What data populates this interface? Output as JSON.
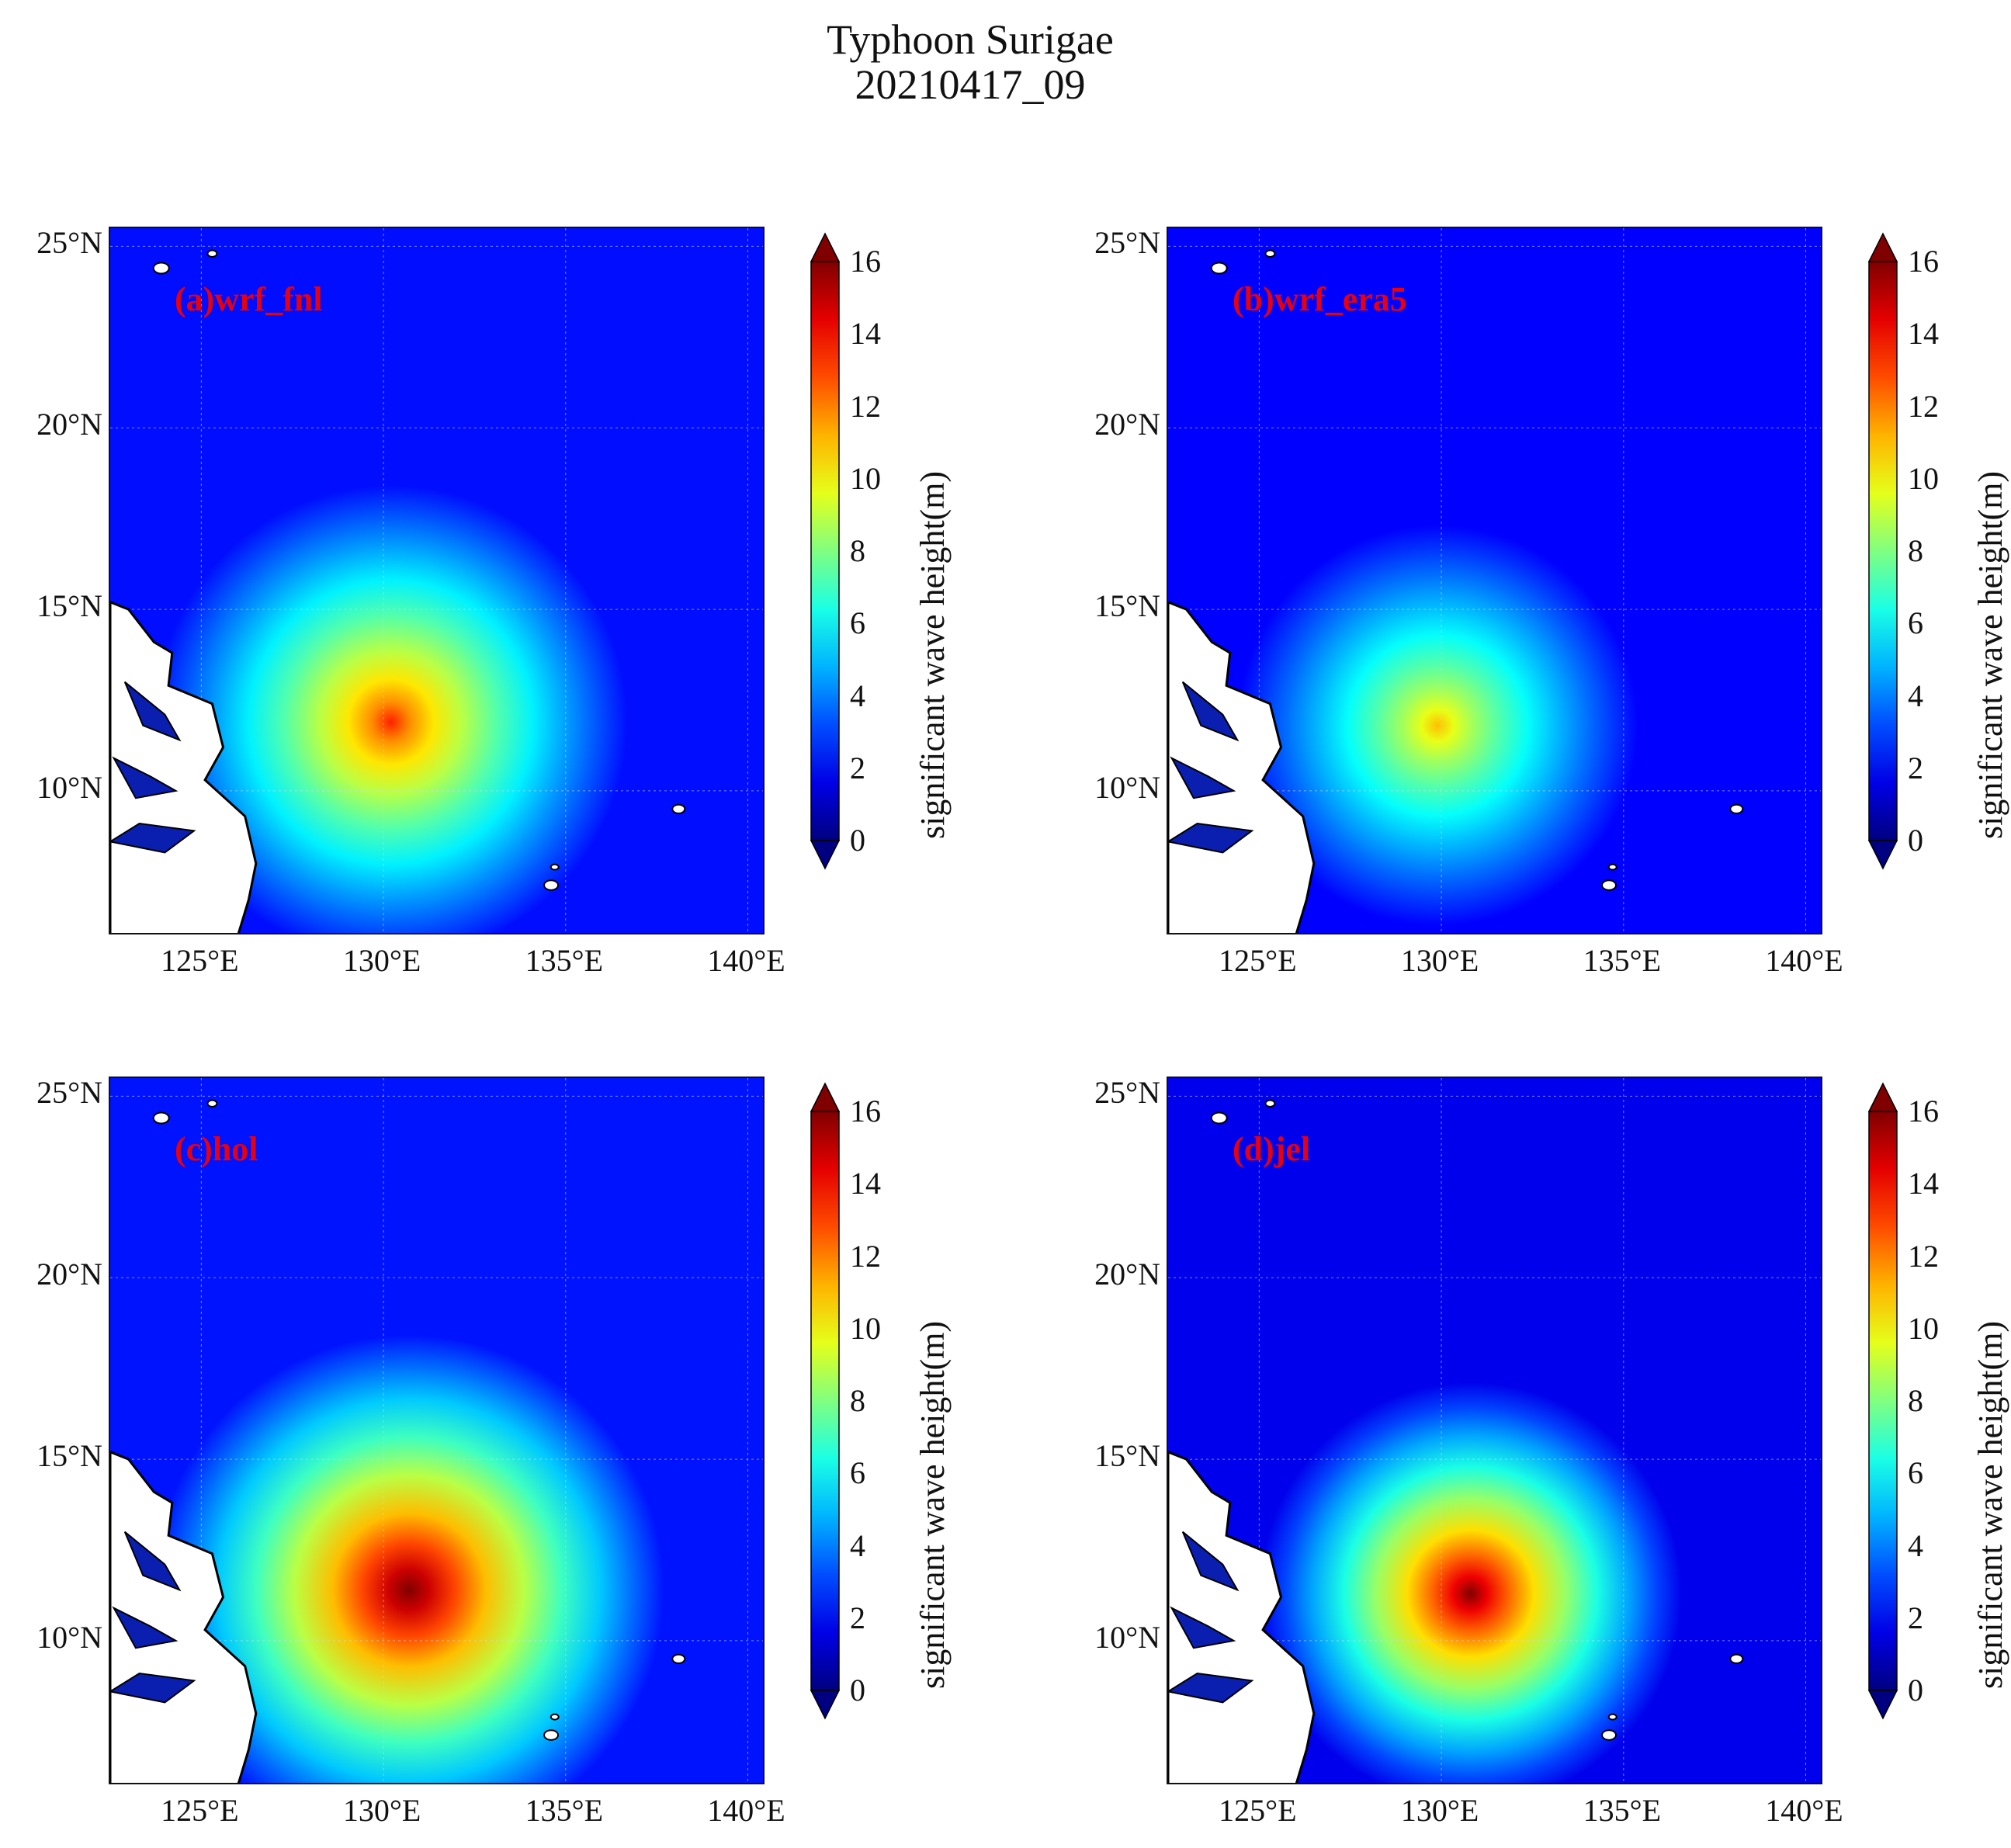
{
  "figure": {
    "title": "Typhoon Surigae",
    "subtitle": "20210417_09"
  },
  "chart_data": [
    {
      "type": "heatmap",
      "panel_label": "(a)wrf_fnl",
      "x_ticks": [
        "125°E",
        "130°E",
        "135°E",
        "140°E"
      ],
      "y_ticks": [
        "25°N",
        "20°N",
        "15°N",
        "10°N"
      ],
      "xlim": [
        122.5,
        140.5
      ],
      "ylim": [
        6.0,
        25.5
      ],
      "colorbar": {
        "label": "significant wave height(m)",
        "ticks": [
          "0",
          "2",
          "4",
          "6",
          "8",
          "10",
          "12",
          "14",
          "16"
        ],
        "range": [
          0,
          16
        ],
        "colormap": "jet",
        "extend": "both"
      },
      "storm_center": {
        "lon": 130.2,
        "lat": 11.9
      },
      "peak_wave_height_m": 13.5,
      "background_wave_height_m": 2.2,
      "falloff_radius_deg": 6.5
    },
    {
      "type": "heatmap",
      "panel_label": "(b)wrf_era5",
      "x_ticks": [
        "125°E",
        "130°E",
        "135°E",
        "140°E"
      ],
      "y_ticks": [
        "25°N",
        "20°N",
        "15°N",
        "10°N"
      ],
      "xlim": [
        122.5,
        140.5
      ],
      "ylim": [
        6.0,
        25.5
      ],
      "colorbar": {
        "label": "significant wave height(m)",
        "ticks": [
          "0",
          "2",
          "4",
          "6",
          "8",
          "10",
          "12",
          "14",
          "16"
        ],
        "range": [
          0,
          16
        ],
        "colormap": "jet",
        "extend": "both"
      },
      "storm_center": {
        "lon": 129.9,
        "lat": 11.8
      },
      "peak_wave_height_m": 11.0,
      "background_wave_height_m": 2.0,
      "falloff_radius_deg": 5.5
    },
    {
      "type": "heatmap",
      "panel_label": "(c)hol",
      "x_ticks": [
        "125°E",
        "130°E",
        "135°E",
        "140°E"
      ],
      "y_ticks": [
        "25°N",
        "20°N",
        "15°N",
        "10°N"
      ],
      "xlim": [
        122.5,
        140.5
      ],
      "ylim": [
        6.0,
        25.5
      ],
      "colorbar": {
        "label": "significant wave height(m)",
        "ticks": [
          "0",
          "2",
          "4",
          "6",
          "8",
          "10",
          "12",
          "14",
          "16"
        ],
        "range": [
          0,
          16
        ],
        "colormap": "jet",
        "extend": "both"
      },
      "storm_center": {
        "lon": 130.7,
        "lat": 11.4
      },
      "peak_wave_height_m": 17.0,
      "background_wave_height_m": 2.3,
      "falloff_radius_deg": 7.0
    },
    {
      "type": "heatmap",
      "panel_label": "(d)jel",
      "x_ticks": [
        "125°E",
        "130°E",
        "135°E",
        "140°E"
      ],
      "y_ticks": [
        "25°N",
        "20°N",
        "15°N",
        "10°N"
      ],
      "xlim": [
        122.5,
        140.5
      ],
      "ylim": [
        6.0,
        25.5
      ],
      "colorbar": {
        "label": "significant wave height(m)",
        "ticks": [
          "0",
          "2",
          "4",
          "6",
          "8",
          "10",
          "12",
          "14",
          "16"
        ],
        "range": [
          0,
          16
        ],
        "colormap": "jet",
        "extend": "both"
      },
      "storm_center": {
        "lon": 130.8,
        "lat": 11.3
      },
      "peak_wave_height_m": 16.5,
      "background_wave_height_m": 1.7,
      "falloff_radius_deg": 5.8
    }
  ]
}
